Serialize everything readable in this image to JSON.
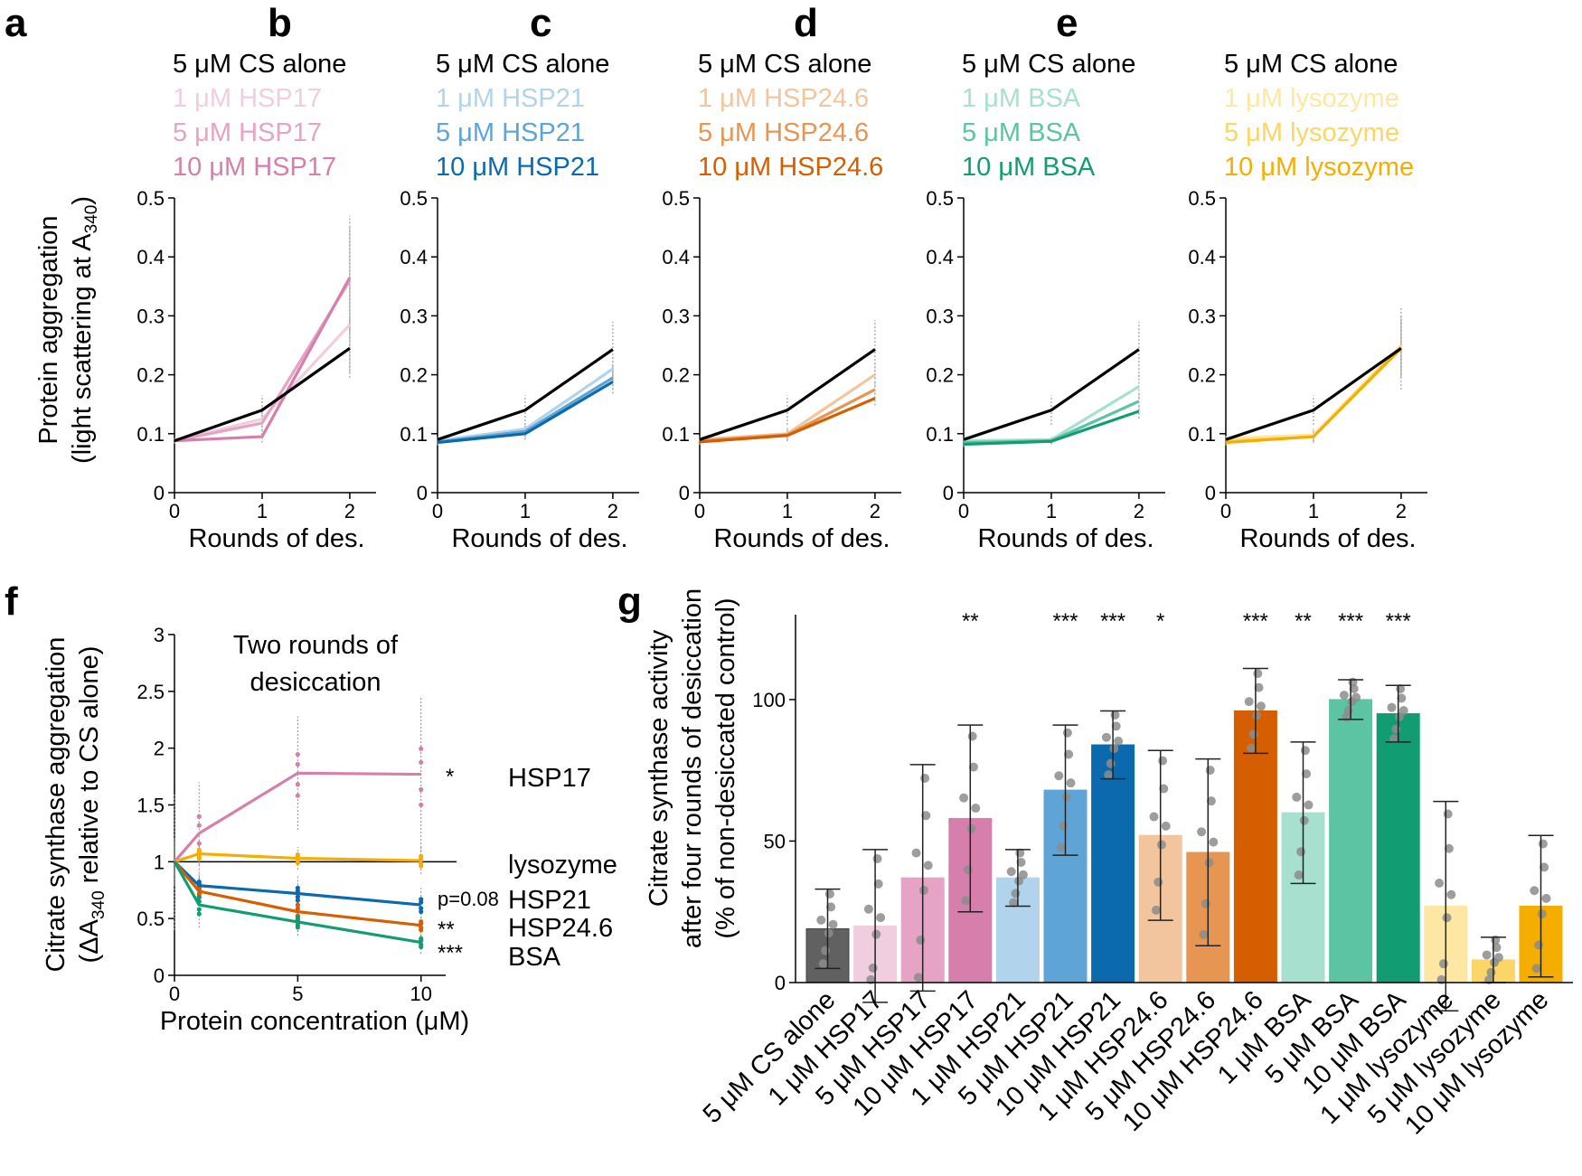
{
  "colors": {
    "black": "#000000",
    "hsp17": [
      "#f1cde0",
      "#e6a3c6",
      "#d67fac"
    ],
    "hsp21": [
      "#b1d4ec",
      "#5fa4d6",
      "#0a6aad"
    ],
    "hsp246": [
      "#f3c59e",
      "#e79552",
      "#d55e00"
    ],
    "bsa": [
      "#a8e0cf",
      "#5cc4a2",
      "#119c72"
    ],
    "lysozyme": [
      "#fde7a3",
      "#fbd566",
      "#f5ad00"
    ],
    "cs_bar": "#616161"
  },
  "panels": [
    {
      "letter": "a",
      "legend": [
        "5 μM CS alone",
        "1 μM HSP17",
        "5 μM HSP17",
        "10 μM HSP17"
      ],
      "xlabel": "Rounds of des."
    },
    {
      "letter": "b",
      "legend": [
        "5 μM CS alone",
        "1 μM HSP21",
        "5 μM HSP21",
        "10 μM HSP21"
      ],
      "xlabel": "Rounds of des."
    },
    {
      "letter": "c",
      "legend": [
        "5 μM CS alone",
        "1 μM HSP24.6",
        "5 μM HSP24.6",
        "10 μM HSP24.6"
      ],
      "xlabel": "Rounds of des."
    },
    {
      "letter": "d",
      "legend": [
        "5 μM CS alone",
        "1 μM BSA",
        "5 μM BSA",
        "10 μM BSA"
      ],
      "xlabel": "Rounds of des."
    },
    {
      "letter": "e",
      "legend": [
        "5 μM CS alone",
        "1 μM lysozyme",
        "5 μM lysozyme",
        "10 μM lysozyme"
      ],
      "xlabel": "Rounds of des."
    }
  ],
  "ylabel_top": {
    "line1": "Protein aggregation",
    "line2_pre": "(light scattering at A",
    "line2_sub": "340",
    "line2_post": ")"
  },
  "panel_f": {
    "letter": "f",
    "title_line1": "Two rounds of",
    "title_line2": "desiccation",
    "ylabel_line1": "Citrate synthase aggregation",
    "ylabel_line2_pre": "(ΔA",
    "ylabel_line2_sub": "340",
    "ylabel_line2_post": " relative to CS alone)",
    "xlabel": "Protein concentration (μM)",
    "labels": {
      "hsp17": "HSP17",
      "lysozyme": "lysozyme",
      "hsp21": "HSP21",
      "hsp246": "HSP24.6",
      "bsa": "BSA"
    },
    "annotations": {
      "hsp17": "*",
      "hsp21": "p=0.08",
      "hsp246": "**",
      "bsa": "***"
    }
  },
  "panel_g": {
    "letter": "g",
    "ylabel_line1": "Citrate synthase activity",
    "ylabel_line2": "after four rounds of desiccation",
    "ylabel_line3": "(% of non-desiccated control)"
  },
  "chart_data": [
    {
      "type": "line",
      "panel": "a",
      "x": [
        0,
        1,
        2
      ],
      "xlim": [
        0,
        2.3
      ],
      "ylim": [
        0,
        0.5
      ],
      "xticks": [
        "0",
        "1",
        "2"
      ],
      "yticks": [
        "0",
        "0.1",
        "0.2",
        "0.3",
        "0.4",
        "0.5"
      ],
      "series": [
        {
          "name": "5 μM CS alone",
          "values": [
            0.088,
            0.14,
            0.245
          ],
          "err": [
            0.005,
            0.025,
            0.05
          ]
        },
        {
          "name": "1 μM HSP17",
          "values": [
            0.088,
            0.125,
            0.285
          ],
          "err": [
            0.005,
            0.02,
            0.08
          ]
        },
        {
          "name": "5 μM HSP17",
          "values": [
            0.088,
            0.118,
            0.36
          ],
          "err": [
            0.005,
            0.02,
            0.09
          ]
        },
        {
          "name": "10 μM HSP17",
          "values": [
            0.088,
            0.095,
            0.365
          ],
          "err": [
            0.005,
            0.01,
            0.105
          ]
        }
      ]
    },
    {
      "type": "line",
      "panel": "b",
      "x": [
        0,
        1,
        2
      ],
      "xlim": [
        0,
        2.3
      ],
      "ylim": [
        0,
        0.5
      ],
      "xticks": [
        "0",
        "1",
        "2"
      ],
      "yticks": [
        "0",
        "0.1",
        "0.2",
        "0.3",
        "0.4",
        "0.5"
      ],
      "series": [
        {
          "name": "5 μM CS alone",
          "values": [
            0.09,
            0.14,
            0.243
          ],
          "err": [
            0.005,
            0.025,
            0.047
          ]
        },
        {
          "name": "1 μM HSP21",
          "values": [
            0.088,
            0.108,
            0.21
          ],
          "err": [
            0.005,
            0.01,
            0.02
          ]
        },
        {
          "name": "5 μM HSP21",
          "values": [
            0.086,
            0.104,
            0.195
          ],
          "err": [
            0.005,
            0.01,
            0.02
          ]
        },
        {
          "name": "10 μM HSP21",
          "values": [
            0.085,
            0.1,
            0.188
          ],
          "err": [
            0.005,
            0.01,
            0.02
          ]
        }
      ]
    },
    {
      "type": "line",
      "panel": "c",
      "x": [
        0,
        1,
        2
      ],
      "xlim": [
        0,
        2.3
      ],
      "ylim": [
        0,
        0.5
      ],
      "xticks": [
        "0",
        "1",
        "2"
      ],
      "yticks": [
        "0",
        "0.1",
        "0.2",
        "0.3",
        "0.4",
        "0.5"
      ],
      "series": [
        {
          "name": "5 μM CS alone",
          "values": [
            0.09,
            0.14,
            0.243
          ],
          "err": [
            0.005,
            0.025,
            0.05
          ]
        },
        {
          "name": "1 μM HSP24.6",
          "values": [
            0.09,
            0.1,
            0.2
          ],
          "err": [
            0.005,
            0.01,
            0.02
          ]
        },
        {
          "name": "5 μM HSP24.6",
          "values": [
            0.088,
            0.098,
            0.175
          ],
          "err": [
            0.005,
            0.01,
            0.015
          ]
        },
        {
          "name": "10 μM HSP24.6",
          "values": [
            0.086,
            0.097,
            0.16
          ],
          "err": [
            0.005,
            0.01,
            0.012
          ]
        }
      ]
    },
    {
      "type": "line",
      "panel": "d",
      "x": [
        0,
        1,
        2
      ],
      "xlim": [
        0,
        2.3
      ],
      "ylim": [
        0,
        0.5
      ],
      "xticks": [
        "0",
        "1",
        "2"
      ],
      "yticks": [
        "0",
        "0.1",
        "0.2",
        "0.3",
        "0.4",
        "0.5"
      ],
      "series": [
        {
          "name": "5 μM CS alone",
          "values": [
            0.09,
            0.14,
            0.243
          ],
          "err": [
            0.005,
            0.025,
            0.047
          ]
        },
        {
          "name": "1 μM BSA",
          "values": [
            0.088,
            0.09,
            0.18
          ],
          "err": [
            0.005,
            0.005,
            0.02
          ]
        },
        {
          "name": "5 μM BSA",
          "values": [
            0.085,
            0.088,
            0.155
          ],
          "err": [
            0.005,
            0.005,
            0.015
          ]
        },
        {
          "name": "10 μM BSA",
          "values": [
            0.082,
            0.087,
            0.138
          ],
          "err": [
            0.005,
            0.005,
            0.012
          ]
        }
      ]
    },
    {
      "type": "line",
      "panel": "e",
      "x": [
        0,
        1,
        2
      ],
      "xlim": [
        0,
        2.3
      ],
      "ylim": [
        0,
        0.5
      ],
      "xticks": [
        "0",
        "1",
        "2"
      ],
      "yticks": [
        "0",
        "0.1",
        "0.2",
        "0.3",
        "0.4",
        "0.5"
      ],
      "series": [
        {
          "name": "5 μM CS alone",
          "values": [
            0.09,
            0.14,
            0.245
          ],
          "err": [
            0.005,
            0.025,
            0.07
          ]
        },
        {
          "name": "1 μM lysozyme",
          "values": [
            0.092,
            0.098,
            0.25
          ],
          "err": [
            0.005,
            0.01,
            0.05
          ]
        },
        {
          "name": "5 μM lysozyme",
          "values": [
            0.088,
            0.095,
            0.248
          ],
          "err": [
            0.005,
            0.01,
            0.05
          ]
        },
        {
          "name": "10 μM lysozyme",
          "values": [
            0.085,
            0.095,
            0.245
          ],
          "err": [
            0.005,
            0.01,
            0.05
          ]
        }
      ]
    },
    {
      "type": "line",
      "panel": "f",
      "x": [
        0,
        1,
        5,
        10
      ],
      "xlim": [
        0,
        11
      ],
      "ylim": [
        0,
        3
      ],
      "xticks": [
        "0",
        "5",
        "10"
      ],
      "xtick_values": [
        0,
        5,
        10
      ],
      "yticks": [
        "0",
        "0.5",
        "1",
        "1.5",
        "2",
        "2.5",
        "3"
      ],
      "reference_line": 1,
      "series": [
        {
          "name": "HSP17",
          "values": [
            1,
            1.25,
            1.78,
            1.77
          ],
          "err": [
            0.6,
            0.45,
            0.5,
            0.68
          ]
        },
        {
          "name": "lysozyme",
          "values": [
            1,
            1.07,
            1.03,
            1.01
          ],
          "err": [
            0.2,
            0.1,
            0.1,
            0.12
          ]
        },
        {
          "name": "HSP21",
          "values": [
            1,
            0.79,
            0.72,
            0.62
          ],
          "err": [
            0.12,
            0.1,
            0.15,
            0.15
          ]
        },
        {
          "name": "HSP24.6",
          "values": [
            1,
            0.74,
            0.56,
            0.44
          ],
          "err": [
            0.12,
            0.12,
            0.18,
            0.1
          ]
        },
        {
          "name": "BSA",
          "values": [
            1,
            0.62,
            0.47,
            0.29
          ],
          "err": [
            0.12,
            0.2,
            0.12,
            0.1
          ]
        }
      ]
    },
    {
      "type": "bar",
      "panel": "g",
      "ylim": [
        0,
        130
      ],
      "yticks": [
        "0",
        "50",
        "100"
      ],
      "ytick_values": [
        0,
        50,
        100
      ],
      "categories": [
        "5 μM CS alone",
        "1 μM HSP17",
        "5 μM HSP17",
        "10 μM HSP17",
        "1 μM HSP21",
        "5 μM HSP21",
        "10 μM HSP21",
        "1 μM HSP24.6",
        "5 μM HSP24.6",
        "10 μM HSP24.6",
        "1 μM BSA",
        "5 μM BSA",
        "10 μM BSA",
        "1 μM lysozyme",
        "5 μM lysozyme",
        "10 μM lysozyme"
      ],
      "values": [
        19,
        20,
        37,
        58,
        37,
        68,
        84,
        52,
        46,
        96,
        60,
        100,
        95,
        27,
        8,
        27
      ],
      "err": [
        14,
        27,
        40,
        33,
        10,
        23,
        12,
        30,
        33,
        15,
        25,
        7,
        10,
        37,
        8,
        25
      ],
      "significance": [
        "",
        "",
        "",
        "**",
        "",
        "***",
        "***",
        "*",
        "",
        "***",
        "**",
        "***",
        "***",
        "",
        "",
        ""
      ]
    }
  ]
}
